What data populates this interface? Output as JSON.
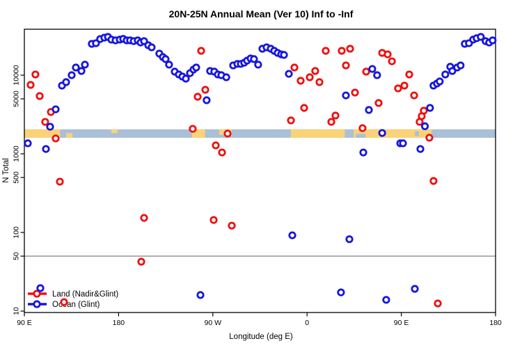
{
  "title": "20N-25N Annual Mean (Ver 10)   Inf to -Inf",
  "axes": {
    "ylabel": "N Total",
    "xlabel": "Longitude (deg E)",
    "x_ticks": [
      {
        "lon": 90,
        "label": "90 E"
      },
      {
        "lon": 180,
        "label": "180"
      },
      {
        "lon": 270,
        "label": "90 W"
      },
      {
        "lon": 360,
        "label": "0"
      },
      {
        "lon": 450,
        "label": "90 E"
      },
      {
        "lon": 540,
        "label": "180"
      }
    ],
    "y_ticks": [
      {
        "value": 10,
        "label": "10"
      },
      {
        "value": 50,
        "label": "50"
      },
      {
        "value": 100,
        "label": "100"
      },
      {
        "value": 500,
        "label": "500"
      },
      {
        "value": 1000,
        "label": "1000"
      },
      {
        "value": 5000,
        "label": "5000"
      },
      {
        "value": 10000,
        "label": "10000"
      }
    ]
  },
  "legend": {
    "items": [
      {
        "label": "Land (Nadir&Glint)",
        "color": "#ee1010"
      },
      {
        "label": "Ocean (Glint)",
        "color": "#1616dd"
      }
    ]
  },
  "colors": {
    "land_points": "#ee1010",
    "ocean_points": "#1616dd",
    "band_land": "#fad379",
    "band_ocean": "#aabfd8",
    "ref_line": "#808080",
    "frame": "#000000"
  },
  "chart_data": {
    "type": "scatter",
    "title": "20N-25N Annual Mean (Ver 10)   Inf to -Inf",
    "xlabel": "Longitude (deg E)",
    "ylabel": "N Total",
    "x_axis": {
      "kind": "longitude",
      "range_deg_continuous": [
        90,
        540
      ],
      "note": "90E to 180 eastward around globe"
    },
    "y_axis": {
      "kind": "log10",
      "range": [
        9.6,
        38000
      ],
      "grid": false
    },
    "ref_line": {
      "value": 50,
      "color": "#808080"
    },
    "land_ocean_band": {
      "value_range": [
        1600,
        2050
      ],
      "ocean_extent": [
        90,
        540
      ],
      "land_segments": [
        {
          "range": [
            90,
            124
          ]
        },
        {
          "range": [
            130,
            136
          ],
          "vfrac": [
            0.45,
            1
          ]
        },
        {
          "range": [
            173,
            179
          ],
          "vfrac": [
            0,
            0.45
          ]
        },
        {
          "range": [
            250,
            262.5
          ]
        },
        {
          "range": [
            276,
            288
          ],
          "vfrac": [
            0,
            0.65
          ]
        },
        {
          "range": [
            344.5,
            396
          ]
        },
        {
          "range": [
            404.5,
            479
          ]
        }
      ],
      "ocean_notches": [
        {
          "range": [
            406.5,
            416
          ],
          "vfrac": [
            0.55,
            1
          ]
        },
        {
          "range": [
            463,
            467
          ],
          "vfrac": [
            0.25,
            0.8
          ]
        }
      ]
    },
    "series": [
      {
        "name": "Land (Nadir&Glint)",
        "color": "#ee1010",
        "points": [
          [
            100.6,
            10200
          ],
          [
            96.0,
            7520
          ],
          [
            104.6,
            5430
          ],
          [
            115.3,
            3400
          ],
          [
            109.9,
            2550
          ],
          [
            119.9,
            1570
          ],
          [
            123.9,
            443
          ],
          [
            127.9,
            13
          ],
          [
            204.3,
            153
          ],
          [
            201.7,
            42.5
          ],
          [
            250.8,
            2080
          ],
          [
            255.5,
            5320
          ],
          [
            258.8,
            20400
          ],
          [
            262.8,
            6520
          ],
          [
            270.8,
            144
          ],
          [
            272.8,
            1280
          ],
          [
            278.8,
            1040
          ],
          [
            284.1,
            1810
          ],
          [
            288.1,
            122
          ],
          [
            344.6,
            2660
          ],
          [
            347.9,
            12500
          ],
          [
            353.9,
            8500
          ],
          [
            357.2,
            3840
          ],
          [
            362.5,
            9400
          ],
          [
            367.8,
            11300
          ],
          [
            371.8,
            8160
          ],
          [
            377.8,
            20400
          ],
          [
            383.1,
            2550
          ],
          [
            387.1,
            3070
          ],
          [
            393.1,
            20400
          ],
          [
            397.1,
            13300
          ],
          [
            401.1,
            21700
          ],
          [
            405.7,
            6010
          ],
          [
            413.0,
            2120
          ],
          [
            416.4,
            11100
          ],
          [
            428.3,
            4430
          ],
          [
            431.7,
            19200
          ],
          [
            437.0,
            18400
          ],
          [
            441.0,
            15000
          ],
          [
            446.9,
            6790
          ],
          [
            452.9,
            7360
          ],
          [
            457.6,
            10200
          ],
          [
            462.2,
            5530
          ],
          [
            467.5,
            2550
          ],
          [
            469.5,
            3010
          ],
          [
            471.5,
            3540
          ],
          [
            476.8,
            1600
          ],
          [
            480.8,
            452
          ],
          [
            484.8,
            12.5
          ]
        ]
      },
      {
        "name": "Ocean (Glint)",
        "color": "#1616dd",
        "points": [
          [
            93.3,
            1360
          ],
          [
            105.3,
            19.6
          ],
          [
            110.6,
            1150
          ],
          [
            114.6,
            2210
          ],
          [
            119.9,
            3680
          ],
          [
            125.9,
            7360
          ],
          [
            129.9,
            8160
          ],
          [
            135.2,
            10000
          ],
          [
            139.2,
            12500
          ],
          [
            144.5,
            11300
          ],
          [
            147.8,
            13600
          ],
          [
            154.4,
            25000
          ],
          [
            158.4,
            25500
          ],
          [
            162.4,
            28800
          ],
          [
            166.4,
            30000
          ],
          [
            169.8,
            30700
          ],
          [
            173.1,
            28300
          ],
          [
            177.1,
            27700
          ],
          [
            181.1,
            28300
          ],
          [
            184.4,
            28900
          ],
          [
            187.7,
            27700
          ],
          [
            191.0,
            27700
          ],
          [
            194.4,
            27100
          ],
          [
            198.3,
            27700
          ],
          [
            201.0,
            26000
          ],
          [
            204.3,
            27100
          ],
          [
            208.3,
            24000
          ],
          [
            211.6,
            22600
          ],
          [
            218.9,
            18800
          ],
          [
            222.3,
            17000
          ],
          [
            224.9,
            16000
          ],
          [
            228.2,
            13600
          ],
          [
            233.6,
            11100
          ],
          [
            237.5,
            10200
          ],
          [
            240.9,
            9600
          ],
          [
            244.2,
            9040
          ],
          [
            248.2,
            10600
          ],
          [
            251.5,
            11800
          ],
          [
            254.1,
            12500
          ],
          [
            258.2,
            16
          ],
          [
            264.1,
            4800
          ],
          [
            267.4,
            11300
          ],
          [
            271.4,
            11100
          ],
          [
            274.8,
            10200
          ],
          [
            278.1,
            10000
          ],
          [
            282.8,
            9400
          ],
          [
            289.4,
            13300
          ],
          [
            293.4,
            13900
          ],
          [
            296.7,
            13900
          ],
          [
            300.0,
            14400
          ],
          [
            302.7,
            15300
          ],
          [
            306.0,
            16300
          ],
          [
            309.3,
            16000
          ],
          [
            313.3,
            13600
          ],
          [
            317.3,
            21700
          ],
          [
            321.3,
            22600
          ],
          [
            325.3,
            21700
          ],
          [
            328.6,
            20400
          ],
          [
            331.9,
            19200
          ],
          [
            335.3,
            18400
          ],
          [
            337.9,
            18100
          ],
          [
            342.6,
            10400
          ],
          [
            345.9,
            92
          ],
          [
            392.4,
            17.3
          ],
          [
            397.1,
            5530
          ],
          [
            400.4,
            82
          ],
          [
            413.7,
            1040
          ],
          [
            419.0,
            3610
          ],
          [
            422.3,
            12000
          ],
          [
            426.9,
            10000
          ],
          [
            431.7,
            1840
          ],
          [
            435.6,
            13.9
          ],
          [
            449.0,
            1360
          ],
          [
            451.6,
            1360
          ],
          [
            462.9,
            19.2
          ],
          [
            468.2,
            1150
          ],
          [
            472.5,
            2240
          ],
          [
            477.4,
            3840
          ],
          [
            480.7,
            7360
          ],
          [
            484.0,
            7830
          ],
          [
            486.7,
            8320
          ],
          [
            492.0,
            10200
          ],
          [
            496.7,
            12800
          ],
          [
            498.7,
            11300
          ],
          [
            503.3,
            12500
          ],
          [
            506.6,
            13300
          ],
          [
            510.6,
            25000
          ],
          [
            514.6,
            25500
          ],
          [
            518.6,
            28300
          ],
          [
            521.9,
            29500
          ],
          [
            525.9,
            30700
          ],
          [
            530.5,
            27100
          ],
          [
            533.9,
            26000
          ],
          [
            537.2,
            27700
          ]
        ]
      }
    ]
  }
}
